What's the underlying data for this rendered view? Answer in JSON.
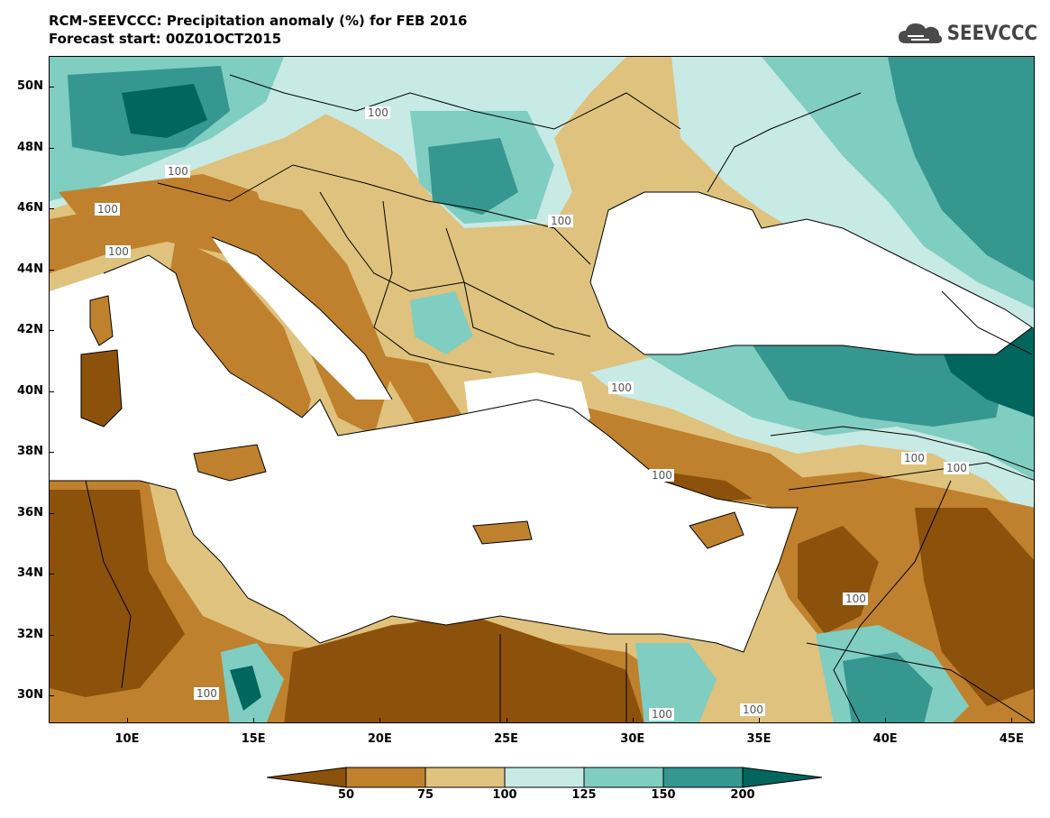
{
  "header": {
    "title": "RCM-SEEVCCC: Precipitation anomaly (%) for FEB 2016",
    "subtitle": "Forecast start: 00Z01OCT2015"
  },
  "logo": {
    "text": "SEEVCCC",
    "icon": "cloud-icon",
    "color": "#4a4a4a"
  },
  "map": {
    "variable": "Precipitation anomaly (%)",
    "lat_labels": [
      "50N",
      "48N",
      "46N",
      "44N",
      "42N",
      "40N",
      "38N",
      "36N",
      "34N",
      "32N",
      "30N"
    ],
    "lon_labels": [
      "10E",
      "15E",
      "20E",
      "25E",
      "30E",
      "35E",
      "40E",
      "45E"
    ],
    "contour_label": "100",
    "colors": {
      "below_50": "#8c510a",
      "50_75": "#bf812d",
      "75_100": "#dfc27d",
      "100_125": "#c7eae5",
      "125_150": "#80cdc1",
      "150_200": "#35978f",
      "above_200": "#01665e",
      "sea": "#ffffff"
    }
  },
  "colorbar": {
    "ticks": [
      "50",
      "75",
      "100",
      "125",
      "150",
      "200"
    ],
    "colors": [
      "#8c510a",
      "#bf812d",
      "#dfc27d",
      "#c7eae5",
      "#80cdc1",
      "#35978f",
      "#01665e"
    ]
  }
}
